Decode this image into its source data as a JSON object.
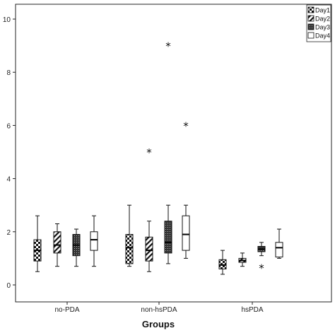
{
  "chart_data": {
    "type": "boxplot",
    "xlabel": "Groups",
    "ylabel": "",
    "ylim": [
      0,
      10
    ],
    "yticks": [
      0,
      2,
      4,
      6,
      8,
      10
    ],
    "grid": false,
    "legend": "top-right",
    "categories": [
      "no-PDA",
      "non-hsPDA",
      "hsPDA"
    ],
    "series": [
      {
        "name": "Day1",
        "pattern": "checker",
        "boxes": [
          {
            "category": "no-PDA",
            "whisker_low": 0.5,
            "q1": 0.9,
            "median": 1.3,
            "q3": 1.7,
            "whisker_high": 2.6,
            "outliers": []
          },
          {
            "category": "non-hsPDA",
            "whisker_low": 0.7,
            "q1": 0.8,
            "median": 1.4,
            "q3": 1.9,
            "whisker_high": 3.0,
            "outliers": []
          },
          {
            "category": "hsPDA",
            "whisker_low": 0.4,
            "q1": 0.6,
            "median": 0.75,
            "q3": 0.95,
            "whisker_high": 1.3,
            "outliers": []
          }
        ]
      },
      {
        "name": "Day2",
        "pattern": "diagonal",
        "boxes": [
          {
            "category": "no-PDA",
            "whisker_low": 0.7,
            "q1": 1.2,
            "median": 1.5,
            "q3": 2.0,
            "whisker_high": 2.3,
            "outliers": []
          },
          {
            "category": "non-hsPDA",
            "whisker_low": 0.5,
            "q1": 0.9,
            "median": 1.3,
            "q3": 1.8,
            "whisker_high": 2.4,
            "outliers": [
              5.0
            ]
          },
          {
            "category": "hsPDA",
            "whisker_low": 0.7,
            "q1": 0.85,
            "median": 0.92,
            "q3": 1.0,
            "whisker_high": 1.2,
            "outliers": []
          }
        ]
      },
      {
        "name": "Day3",
        "pattern": "dense-dots",
        "boxes": [
          {
            "category": "no-PDA",
            "whisker_low": 0.7,
            "q1": 1.1,
            "median": 1.5,
            "q3": 1.9,
            "whisker_high": 2.1,
            "outliers": []
          },
          {
            "category": "non-hsPDA",
            "whisker_low": 0.8,
            "q1": 1.2,
            "median": 1.6,
            "q3": 2.4,
            "whisker_high": 3.0,
            "outliers": [
              9.0
            ]
          },
          {
            "category": "hsPDA",
            "whisker_low": 1.1,
            "q1": 1.25,
            "median": 1.35,
            "q3": 1.45,
            "whisker_high": 1.6,
            "outliers": [
              0.65
            ]
          }
        ]
      },
      {
        "name": "Day4",
        "pattern": "none",
        "boxes": [
          {
            "category": "no-PDA",
            "whisker_low": 0.7,
            "q1": 1.3,
            "median": 1.7,
            "q3": 2.0,
            "whisker_high": 2.6,
            "outliers": []
          },
          {
            "category": "non-hsPDA",
            "whisker_low": 1.0,
            "q1": 1.3,
            "median": 1.9,
            "q3": 2.6,
            "whisker_high": 3.0,
            "outliers": [
              6.0
            ]
          },
          {
            "category": "hsPDA",
            "whisker_low": 1.0,
            "q1": 1.05,
            "median": 1.4,
            "q3": 1.6,
            "whisker_high": 2.1,
            "outliers": []
          }
        ]
      }
    ]
  }
}
